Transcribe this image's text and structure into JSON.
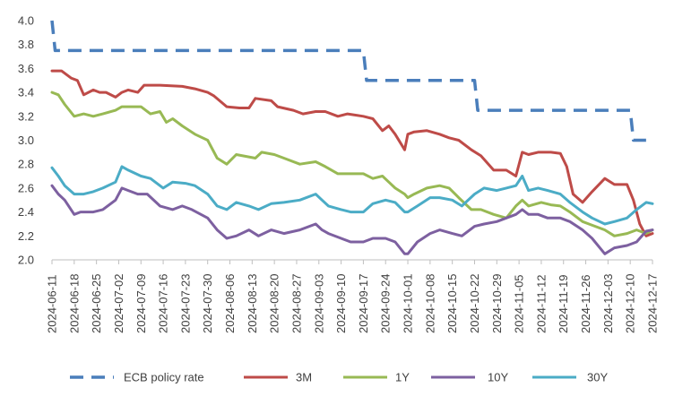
{
  "chart_data": {
    "type": "line",
    "title": "",
    "xlabel": "",
    "ylabel": "",
    "ylim": [
      2.0,
      4.0
    ],
    "y_ticks": [
      "4.0",
      "3.8",
      "3.6",
      "3.4",
      "3.2",
      "3.0",
      "2.8",
      "2.6",
      "2.4",
      "2.2",
      "2.0"
    ],
    "x_ticks": [
      "2024-06-11",
      "2024-06-18",
      "2024-06-25",
      "2024-07-02",
      "2024-07-09",
      "2024-07-16",
      "2024-07-23",
      "2024-07-30",
      "2024-08-06",
      "2024-08-13",
      "2024-08-20",
      "2024-08-27",
      "2024-09-03",
      "2024-09-10",
      "2024-09-17",
      "2024-09-24",
      "2024-10-01",
      "2024-10-08",
      "2024-10-15",
      "2024-10-22",
      "2024-10-29",
      "2024-11-05",
      "2024-11-12",
      "2024-11-19",
      "2024-11-26",
      "2024-12-03",
      "2024-12-10",
      "2024-12-17"
    ],
    "grid": false,
    "legend_position": "bottom",
    "series": [
      {
        "name": "ECB policy rate",
        "color": "#4a7ebb",
        "style": "dashed",
        "points": [
          [
            "2024-06-11",
            4.0
          ],
          [
            "2024-06-12",
            3.75
          ],
          [
            "2024-09-17",
            3.75
          ],
          [
            "2024-09-18",
            3.5
          ],
          [
            "2024-10-22",
            3.5
          ],
          [
            "2024-10-23",
            3.25
          ],
          [
            "2024-12-10",
            3.25
          ],
          [
            "2024-12-11",
            3.0
          ],
          [
            "2024-12-17",
            3.0
          ]
        ]
      },
      {
        "name": "3M",
        "color": "#be4b48",
        "points": [
          [
            "2024-06-11",
            3.58
          ],
          [
            "2024-06-14",
            3.58
          ],
          [
            "2024-06-17",
            3.52
          ],
          [
            "2024-06-19",
            3.5
          ],
          [
            "2024-06-21",
            3.38
          ],
          [
            "2024-06-24",
            3.42
          ],
          [
            "2024-06-26",
            3.4
          ],
          [
            "2024-06-28",
            3.4
          ],
          [
            "2024-07-01",
            3.36
          ],
          [
            "2024-07-03",
            3.4
          ],
          [
            "2024-07-05",
            3.42
          ],
          [
            "2024-07-08",
            3.4
          ],
          [
            "2024-07-10",
            3.46
          ],
          [
            "2024-07-15",
            3.46
          ],
          [
            "2024-07-22",
            3.45
          ],
          [
            "2024-07-26",
            3.43
          ],
          [
            "2024-07-30",
            3.4
          ],
          [
            "2024-08-01",
            3.37
          ],
          [
            "2024-08-05",
            3.28
          ],
          [
            "2024-08-09",
            3.27
          ],
          [
            "2024-08-12",
            3.27
          ],
          [
            "2024-08-14",
            3.35
          ],
          [
            "2024-08-19",
            3.33
          ],
          [
            "2024-08-21",
            3.28
          ],
          [
            "2024-08-26",
            3.25
          ],
          [
            "2024-08-29",
            3.22
          ],
          [
            "2024-09-02",
            3.24
          ],
          [
            "2024-09-05",
            3.24
          ],
          [
            "2024-09-09",
            3.2
          ],
          [
            "2024-09-12",
            3.22
          ],
          [
            "2024-09-17",
            3.2
          ],
          [
            "2024-09-20",
            3.18
          ],
          [
            "2024-09-23",
            3.08
          ],
          [
            "2024-09-25",
            3.12
          ],
          [
            "2024-09-27",
            3.05
          ],
          [
            "2024-09-30",
            2.92
          ],
          [
            "2024-10-01",
            3.05
          ],
          [
            "2024-10-03",
            3.07
          ],
          [
            "2024-10-07",
            3.08
          ],
          [
            "2024-10-11",
            3.05
          ],
          [
            "2024-10-14",
            3.02
          ],
          [
            "2024-10-17",
            3.0
          ],
          [
            "2024-10-21",
            2.92
          ],
          [
            "2024-10-24",
            2.87
          ],
          [
            "2024-10-28",
            2.75
          ],
          [
            "2024-11-01",
            2.75
          ],
          [
            "2024-11-04",
            2.7
          ],
          [
            "2024-11-06",
            2.9
          ],
          [
            "2024-11-08",
            2.88
          ],
          [
            "2024-11-11",
            2.9
          ],
          [
            "2024-11-15",
            2.9
          ],
          [
            "2024-11-18",
            2.89
          ],
          [
            "2024-11-20",
            2.78
          ],
          [
            "2024-11-22",
            2.55
          ],
          [
            "2024-11-25",
            2.48
          ],
          [
            "2024-11-28",
            2.57
          ],
          [
            "2024-12-02",
            2.68
          ],
          [
            "2024-12-05",
            2.63
          ],
          [
            "2024-12-09",
            2.63
          ],
          [
            "2024-12-11",
            2.5
          ],
          [
            "2024-12-13",
            2.3
          ],
          [
            "2024-12-15",
            2.2
          ],
          [
            "2024-12-17",
            2.22
          ]
        ]
      },
      {
        "name": "1Y",
        "color": "#98b954",
        "points": [
          [
            "2024-06-11",
            3.4
          ],
          [
            "2024-06-13",
            3.38
          ],
          [
            "2024-06-15",
            3.3
          ],
          [
            "2024-06-18",
            3.2
          ],
          [
            "2024-06-21",
            3.22
          ],
          [
            "2024-06-24",
            3.2
          ],
          [
            "2024-06-27",
            3.22
          ],
          [
            "2024-07-01",
            3.25
          ],
          [
            "2024-07-03",
            3.28
          ],
          [
            "2024-07-05",
            3.28
          ],
          [
            "2024-07-09",
            3.28
          ],
          [
            "2024-07-12",
            3.22
          ],
          [
            "2024-07-15",
            3.24
          ],
          [
            "2024-07-17",
            3.15
          ],
          [
            "2024-07-19",
            3.18
          ],
          [
            "2024-07-22",
            3.12
          ],
          [
            "2024-07-26",
            3.05
          ],
          [
            "2024-07-30",
            3.0
          ],
          [
            "2024-08-02",
            2.85
          ],
          [
            "2024-08-05",
            2.8
          ],
          [
            "2024-08-08",
            2.88
          ],
          [
            "2024-08-14",
            2.85
          ],
          [
            "2024-08-16",
            2.9
          ],
          [
            "2024-08-20",
            2.88
          ],
          [
            "2024-08-23",
            2.85
          ],
          [
            "2024-08-28",
            2.8
          ],
          [
            "2024-09-02",
            2.82
          ],
          [
            "2024-09-05",
            2.78
          ],
          [
            "2024-09-09",
            2.72
          ],
          [
            "2024-09-12",
            2.72
          ],
          [
            "2024-09-17",
            2.72
          ],
          [
            "2024-09-20",
            2.68
          ],
          [
            "2024-09-23",
            2.7
          ],
          [
            "2024-09-25",
            2.65
          ],
          [
            "2024-09-27",
            2.6
          ],
          [
            "2024-09-30",
            2.55
          ],
          [
            "2024-10-01",
            2.52
          ],
          [
            "2024-10-03",
            2.55
          ],
          [
            "2024-10-07",
            2.6
          ],
          [
            "2024-10-11",
            2.62
          ],
          [
            "2024-10-14",
            2.6
          ],
          [
            "2024-10-17",
            2.52
          ],
          [
            "2024-10-21",
            2.42
          ],
          [
            "2024-10-24",
            2.42
          ],
          [
            "2024-10-28",
            2.38
          ],
          [
            "2024-11-01",
            2.35
          ],
          [
            "2024-11-04",
            2.45
          ],
          [
            "2024-11-06",
            2.5
          ],
          [
            "2024-11-08",
            2.45
          ],
          [
            "2024-11-12",
            2.48
          ],
          [
            "2024-11-15",
            2.46
          ],
          [
            "2024-11-18",
            2.45
          ],
          [
            "2024-11-21",
            2.4
          ],
          [
            "2024-11-25",
            2.32
          ],
          [
            "2024-11-27",
            2.3
          ],
          [
            "2024-12-02",
            2.25
          ],
          [
            "2024-12-05",
            2.2
          ],
          [
            "2024-12-09",
            2.22
          ],
          [
            "2024-12-12",
            2.25
          ],
          [
            "2024-12-15",
            2.22
          ],
          [
            "2024-12-17",
            2.25
          ]
        ]
      },
      {
        "name": "10Y",
        "color": "#7d60a0",
        "points": [
          [
            "2024-06-11",
            2.62
          ],
          [
            "2024-06-13",
            2.55
          ],
          [
            "2024-06-15",
            2.5
          ],
          [
            "2024-06-18",
            2.38
          ],
          [
            "2024-06-20",
            2.4
          ],
          [
            "2024-06-24",
            2.4
          ],
          [
            "2024-06-27",
            2.42
          ],
          [
            "2024-07-01",
            2.5
          ],
          [
            "2024-07-03",
            2.6
          ],
          [
            "2024-07-05",
            2.58
          ],
          [
            "2024-07-08",
            2.55
          ],
          [
            "2024-07-11",
            2.55
          ],
          [
            "2024-07-15",
            2.45
          ],
          [
            "2024-07-19",
            2.42
          ],
          [
            "2024-07-22",
            2.45
          ],
          [
            "2024-07-25",
            2.42
          ],
          [
            "2024-07-30",
            2.35
          ],
          [
            "2024-08-02",
            2.25
          ],
          [
            "2024-08-05",
            2.18
          ],
          [
            "2024-08-08",
            2.2
          ],
          [
            "2024-08-12",
            2.25
          ],
          [
            "2024-08-15",
            2.2
          ],
          [
            "2024-08-19",
            2.25
          ],
          [
            "2024-08-23",
            2.22
          ],
          [
            "2024-08-28",
            2.25
          ],
          [
            "2024-09-02",
            2.3
          ],
          [
            "2024-09-04",
            2.25
          ],
          [
            "2024-09-06",
            2.22
          ],
          [
            "2024-09-10",
            2.18
          ],
          [
            "2024-09-13",
            2.15
          ],
          [
            "2024-09-17",
            2.15
          ],
          [
            "2024-09-20",
            2.18
          ],
          [
            "2024-09-24",
            2.18
          ],
          [
            "2024-09-27",
            2.15
          ],
          [
            "2024-09-30",
            2.05
          ],
          [
            "2024-10-01",
            2.05
          ],
          [
            "2024-10-04",
            2.15
          ],
          [
            "2024-10-08",
            2.22
          ],
          [
            "2024-10-11",
            2.25
          ],
          [
            "2024-10-15",
            2.22
          ],
          [
            "2024-10-18",
            2.2
          ],
          [
            "2024-10-22",
            2.28
          ],
          [
            "2024-10-25",
            2.3
          ],
          [
            "2024-10-29",
            2.32
          ],
          [
            "2024-11-01",
            2.35
          ],
          [
            "2024-11-04",
            2.38
          ],
          [
            "2024-11-06",
            2.42
          ],
          [
            "2024-11-08",
            2.38
          ],
          [
            "2024-11-11",
            2.38
          ],
          [
            "2024-11-14",
            2.35
          ],
          [
            "2024-11-18",
            2.35
          ],
          [
            "2024-11-21",
            2.32
          ],
          [
            "2024-11-25",
            2.25
          ],
          [
            "2024-11-28",
            2.18
          ],
          [
            "2024-12-02",
            2.05
          ],
          [
            "2024-12-05",
            2.1
          ],
          [
            "2024-12-09",
            2.12
          ],
          [
            "2024-12-12",
            2.15
          ],
          [
            "2024-12-15",
            2.24
          ],
          [
            "2024-12-17",
            2.25
          ]
        ]
      },
      {
        "name": "30Y",
        "color": "#4bacc6",
        "points": [
          [
            "2024-06-11",
            2.77
          ],
          [
            "2024-06-13",
            2.7
          ],
          [
            "2024-06-15",
            2.62
          ],
          [
            "2024-06-18",
            2.55
          ],
          [
            "2024-06-21",
            2.55
          ],
          [
            "2024-06-24",
            2.57
          ],
          [
            "2024-06-27",
            2.6
          ],
          [
            "2024-07-01",
            2.65
          ],
          [
            "2024-07-03",
            2.78
          ],
          [
            "2024-07-05",
            2.75
          ],
          [
            "2024-07-09",
            2.7
          ],
          [
            "2024-07-12",
            2.68
          ],
          [
            "2024-07-16",
            2.6
          ],
          [
            "2024-07-19",
            2.65
          ],
          [
            "2024-07-23",
            2.64
          ],
          [
            "2024-07-26",
            2.62
          ],
          [
            "2024-07-30",
            2.55
          ],
          [
            "2024-08-02",
            2.45
          ],
          [
            "2024-08-05",
            2.42
          ],
          [
            "2024-08-08",
            2.48
          ],
          [
            "2024-08-12",
            2.45
          ],
          [
            "2024-08-15",
            2.42
          ],
          [
            "2024-08-19",
            2.47
          ],
          [
            "2024-08-23",
            2.48
          ],
          [
            "2024-08-28",
            2.5
          ],
          [
            "2024-09-02",
            2.55
          ],
          [
            "2024-09-04",
            2.5
          ],
          [
            "2024-09-06",
            2.45
          ],
          [
            "2024-09-10",
            2.42
          ],
          [
            "2024-09-13",
            2.4
          ],
          [
            "2024-09-17",
            2.4
          ],
          [
            "2024-09-20",
            2.47
          ],
          [
            "2024-09-24",
            2.5
          ],
          [
            "2024-09-27",
            2.48
          ],
          [
            "2024-09-30",
            2.4
          ],
          [
            "2024-10-01",
            2.4
          ],
          [
            "2024-10-04",
            2.45
          ],
          [
            "2024-10-08",
            2.52
          ],
          [
            "2024-10-11",
            2.52
          ],
          [
            "2024-10-15",
            2.5
          ],
          [
            "2024-10-18",
            2.45
          ],
          [
            "2024-10-22",
            2.55
          ],
          [
            "2024-10-25",
            2.6
          ],
          [
            "2024-10-29",
            2.58
          ],
          [
            "2024-11-01",
            2.6
          ],
          [
            "2024-11-04",
            2.62
          ],
          [
            "2024-11-06",
            2.7
          ],
          [
            "2024-11-08",
            2.58
          ],
          [
            "2024-11-11",
            2.6
          ],
          [
            "2024-11-14",
            2.58
          ],
          [
            "2024-11-18",
            2.55
          ],
          [
            "2024-11-21",
            2.48
          ],
          [
            "2024-11-25",
            2.4
          ],
          [
            "2024-11-28",
            2.35
          ],
          [
            "2024-12-02",
            2.3
          ],
          [
            "2024-12-05",
            2.32
          ],
          [
            "2024-12-09",
            2.35
          ],
          [
            "2024-12-12",
            2.42
          ],
          [
            "2024-12-15",
            2.48
          ],
          [
            "2024-12-17",
            2.47
          ]
        ]
      }
    ]
  }
}
